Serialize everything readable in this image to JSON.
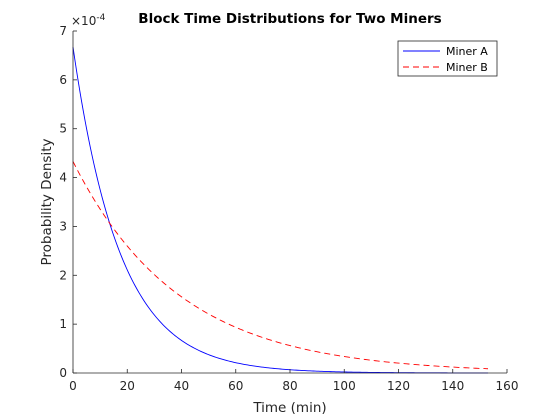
{
  "chart_data": {
    "type": "line",
    "title": "Block Time Distributions for Two Miners",
    "xlabel": "Time (min)",
    "ylabel": "Probability Density",
    "y_exponent_label": "×10",
    "y_exponent_power": "-4",
    "xlim": [
      0,
      160
    ],
    "ylim": [
      0,
      7
    ],
    "x_ticks": [
      0,
      20,
      40,
      60,
      80,
      100,
      120,
      140,
      160
    ],
    "y_ticks": [
      0,
      1,
      2,
      3,
      4,
      5,
      6,
      7
    ],
    "grid": false,
    "legend_position": "top-right",
    "x": [
      0,
      10,
      20,
      30,
      40,
      50,
      60,
      70,
      80,
      90,
      100,
      110,
      120,
      130,
      140,
      150,
      153
    ],
    "series": [
      {
        "name": "Miner A",
        "color": "#0000ff",
        "style": "solid",
        "values": [
          6.67,
          3.74,
          2.1,
          1.18,
          0.66,
          0.37,
          0.21,
          0.12,
          0.066,
          0.037,
          0.021,
          0.012,
          0.0066,
          0.0037,
          0.0021,
          0.0012,
          0.001
        ]
      },
      {
        "name": "Miner B",
        "color": "#ff0000",
        "style": "dashed",
        "values": [
          4.33,
          3.36,
          2.6,
          2.02,
          1.56,
          1.21,
          0.94,
          0.73,
          0.56,
          0.44,
          0.34,
          0.26,
          0.2,
          0.16,
          0.12,
          0.095,
          0.087
        ]
      }
    ]
  }
}
